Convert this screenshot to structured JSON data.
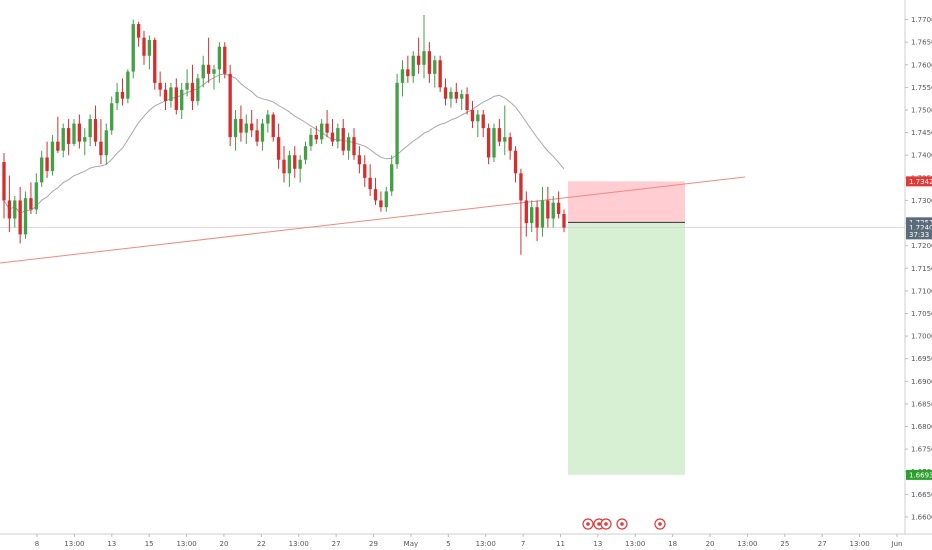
{
  "chart_data": {
    "type": "candlestick",
    "price_axis": {
      "ticks": [
        "1.77000",
        "1.76500",
        "1.76000",
        "1.75500",
        "1.75000",
        "1.74500",
        "1.74000",
        "1.73500",
        "1.73000",
        "1.72500",
        "1.72000",
        "1.71500",
        "1.71000",
        "1.70500",
        "1.70000",
        "1.69500",
        "1.69000",
        "1.68500",
        "1.68000",
        "1.67500",
        "1.67000",
        "1.66500",
        "1.66000"
      ],
      "range": [
        1.658,
        1.773
      ]
    },
    "time_axis": {
      "ticks": [
        "8",
        "13:00",
        "13",
        "15",
        "13:00",
        "20",
        "22",
        "13:00",
        "27",
        "29",
        "May",
        "5",
        "13:00",
        "7",
        "11",
        "13",
        "13:00",
        "18",
        "20",
        "13:00",
        "25",
        "27",
        "13:00",
        "Jun"
      ]
    },
    "price_badges": [
      {
        "label": "1.73422",
        "price": 1.73422,
        "color": "#e53935"
      },
      {
        "label": "1.72516",
        "price": 1.72516,
        "color": "#5b6b7b"
      },
      {
        "label": "1.72404",
        "price": 1.72404,
        "color": "#5b6b7b"
      },
      {
        "label": "37:33",
        "price": 1.7225,
        "color": "#5b6b7b"
      },
      {
        "label": "1.66930",
        "price": 1.6693,
        "color": "#2ca02c"
      }
    ],
    "position_tool": {
      "type": "short",
      "entry": 1.72516,
      "stop": 1.73422,
      "target": 1.6693,
      "stop_color": "#ffcdd2",
      "target_color": "#d7f0d4"
    },
    "trendline_color": "#ef8a80",
    "moving_average_color": "#a8a8a8",
    "up_color": "#43a047",
    "down_color": "#d32f2f",
    "event_marker_color": "#e53935",
    "series": [
      {
        "o": 1.7385,
        "h": 1.7405,
        "l": 1.726,
        "c": 1.73
      },
      {
        "o": 1.73,
        "h": 1.7355,
        "l": 1.723,
        "c": 1.726
      },
      {
        "o": 1.726,
        "h": 1.731,
        "l": 1.724,
        "c": 1.73
      },
      {
        "o": 1.73,
        "h": 1.733,
        "l": 1.7205,
        "c": 1.7225
      },
      {
        "o": 1.7225,
        "h": 1.732,
        "l": 1.7215,
        "c": 1.7305
      },
      {
        "o": 1.7305,
        "h": 1.734,
        "l": 1.727,
        "c": 1.728
      },
      {
        "o": 1.728,
        "h": 1.736,
        "l": 1.727,
        "c": 1.734
      },
      {
        "o": 1.734,
        "h": 1.741,
        "l": 1.733,
        "c": 1.7395
      },
      {
        "o": 1.7395,
        "h": 1.743,
        "l": 1.735,
        "c": 1.7365
      },
      {
        "o": 1.7365,
        "h": 1.7445,
        "l": 1.7355,
        "c": 1.743
      },
      {
        "o": 1.743,
        "h": 1.7485,
        "l": 1.7405,
        "c": 1.741
      },
      {
        "o": 1.741,
        "h": 1.747,
        "l": 1.7395,
        "c": 1.746
      },
      {
        "o": 1.746,
        "h": 1.748,
        "l": 1.74,
        "c": 1.7425
      },
      {
        "o": 1.7425,
        "h": 1.748,
        "l": 1.742,
        "c": 1.747
      },
      {
        "o": 1.747,
        "h": 1.749,
        "l": 1.7415,
        "c": 1.743
      },
      {
        "o": 1.743,
        "h": 1.746,
        "l": 1.74,
        "c": 1.744
      },
      {
        "o": 1.744,
        "h": 1.749,
        "l": 1.742,
        "c": 1.748
      },
      {
        "o": 1.748,
        "h": 1.751,
        "l": 1.742,
        "c": 1.743
      },
      {
        "o": 1.743,
        "h": 1.748,
        "l": 1.738,
        "c": 1.74
      },
      {
        "o": 1.74,
        "h": 1.747,
        "l": 1.738,
        "c": 1.7455
      },
      {
        "o": 1.7455,
        "h": 1.753,
        "l": 1.7445,
        "c": 1.7515
      },
      {
        "o": 1.7515,
        "h": 1.756,
        "l": 1.75,
        "c": 1.754
      },
      {
        "o": 1.754,
        "h": 1.757,
        "l": 1.751,
        "c": 1.7525
      },
      {
        "o": 1.7525,
        "h": 1.759,
        "l": 1.7515,
        "c": 1.7585
      },
      {
        "o": 1.7585,
        "h": 1.77,
        "l": 1.757,
        "c": 1.769
      },
      {
        "o": 1.769,
        "h": 1.7695,
        "l": 1.764,
        "c": 1.766
      },
      {
        "o": 1.766,
        "h": 1.7675,
        "l": 1.76,
        "c": 1.762
      },
      {
        "o": 1.762,
        "h": 1.7665,
        "l": 1.759,
        "c": 1.7655
      },
      {
        "o": 1.7655,
        "h": 1.766,
        "l": 1.7545,
        "c": 1.756
      },
      {
        "o": 1.756,
        "h": 1.7585,
        "l": 1.753,
        "c": 1.7545
      },
      {
        "o": 1.7545,
        "h": 1.756,
        "l": 1.75,
        "c": 1.752
      },
      {
        "o": 1.752,
        "h": 1.756,
        "l": 1.7505,
        "c": 1.755
      },
      {
        "o": 1.755,
        "h": 1.757,
        "l": 1.749,
        "c": 1.75
      },
      {
        "o": 1.75,
        "h": 1.756,
        "l": 1.748,
        "c": 1.7545
      },
      {
        "o": 1.7545,
        "h": 1.759,
        "l": 1.753,
        "c": 1.756
      },
      {
        "o": 1.756,
        "h": 1.76,
        "l": 1.75,
        "c": 1.752
      },
      {
        "o": 1.752,
        "h": 1.758,
        "l": 1.751,
        "c": 1.757
      },
      {
        "o": 1.757,
        "h": 1.762,
        "l": 1.755,
        "c": 1.76
      },
      {
        "o": 1.76,
        "h": 1.766,
        "l": 1.756,
        "c": 1.758
      },
      {
        "o": 1.758,
        "h": 1.76,
        "l": 1.7545,
        "c": 1.759
      },
      {
        "o": 1.759,
        "h": 1.765,
        "l": 1.756,
        "c": 1.764
      },
      {
        "o": 1.764,
        "h": 1.765,
        "l": 1.757,
        "c": 1.758
      },
      {
        "o": 1.758,
        "h": 1.76,
        "l": 1.742,
        "c": 1.744
      },
      {
        "o": 1.744,
        "h": 1.75,
        "l": 1.741,
        "c": 1.748
      },
      {
        "o": 1.748,
        "h": 1.751,
        "l": 1.743,
        "c": 1.745
      },
      {
        "o": 1.745,
        "h": 1.749,
        "l": 1.7425,
        "c": 1.747
      },
      {
        "o": 1.747,
        "h": 1.75,
        "l": 1.744,
        "c": 1.7455
      },
      {
        "o": 1.7455,
        "h": 1.748,
        "l": 1.742,
        "c": 1.743
      },
      {
        "o": 1.743,
        "h": 1.748,
        "l": 1.741,
        "c": 1.747
      },
      {
        "o": 1.747,
        "h": 1.75,
        "l": 1.745,
        "c": 1.749
      },
      {
        "o": 1.749,
        "h": 1.7495,
        "l": 1.743,
        "c": 1.744
      },
      {
        "o": 1.744,
        "h": 1.747,
        "l": 1.737,
        "c": 1.739
      },
      {
        "o": 1.739,
        "h": 1.742,
        "l": 1.734,
        "c": 1.736
      },
      {
        "o": 1.736,
        "h": 1.741,
        "l": 1.733,
        "c": 1.74
      },
      {
        "o": 1.74,
        "h": 1.742,
        "l": 1.735,
        "c": 1.737
      },
      {
        "o": 1.737,
        "h": 1.74,
        "l": 1.734,
        "c": 1.739
      },
      {
        "o": 1.739,
        "h": 1.743,
        "l": 1.738,
        "c": 1.742
      },
      {
        "o": 1.742,
        "h": 1.746,
        "l": 1.741,
        "c": 1.7445
      },
      {
        "o": 1.7445,
        "h": 1.7465,
        "l": 1.7425,
        "c": 1.7435
      },
      {
        "o": 1.7435,
        "h": 1.748,
        "l": 1.7425,
        "c": 1.747
      },
      {
        "o": 1.747,
        "h": 1.75,
        "l": 1.744,
        "c": 1.745
      },
      {
        "o": 1.745,
        "h": 1.748,
        "l": 1.742,
        "c": 1.743
      },
      {
        "o": 1.743,
        "h": 1.747,
        "l": 1.7415,
        "c": 1.746
      },
      {
        "o": 1.746,
        "h": 1.748,
        "l": 1.74,
        "c": 1.741
      },
      {
        "o": 1.741,
        "h": 1.745,
        "l": 1.739,
        "c": 1.744
      },
      {
        "o": 1.744,
        "h": 1.746,
        "l": 1.739,
        "c": 1.74
      },
      {
        "o": 1.74,
        "h": 1.742,
        "l": 1.736,
        "c": 1.738
      },
      {
        "o": 1.738,
        "h": 1.74,
        "l": 1.733,
        "c": 1.735
      },
      {
        "o": 1.735,
        "h": 1.738,
        "l": 1.731,
        "c": 1.7325
      },
      {
        "o": 1.7325,
        "h": 1.735,
        "l": 1.729,
        "c": 1.73
      },
      {
        "o": 1.73,
        "h": 1.732,
        "l": 1.7275,
        "c": 1.7285
      },
      {
        "o": 1.7285,
        "h": 1.733,
        "l": 1.7275,
        "c": 1.732
      },
      {
        "o": 1.732,
        "h": 1.74,
        "l": 1.731,
        "c": 1.738
      },
      {
        "o": 1.738,
        "h": 1.758,
        "l": 1.737,
        "c": 1.756
      },
      {
        "o": 1.756,
        "h": 1.761,
        "l": 1.753,
        "c": 1.759
      },
      {
        "o": 1.759,
        "h": 1.762,
        "l": 1.756,
        "c": 1.7575
      },
      {
        "o": 1.7575,
        "h": 1.763,
        "l": 1.756,
        "c": 1.762
      },
      {
        "o": 1.762,
        "h": 1.766,
        "l": 1.758,
        "c": 1.76
      },
      {
        "o": 1.76,
        "h": 1.771,
        "l": 1.757,
        "c": 1.763
      },
      {
        "o": 1.763,
        "h": 1.765,
        "l": 1.756,
        "c": 1.758
      },
      {
        "o": 1.758,
        "h": 1.762,
        "l": 1.755,
        "c": 1.761
      },
      {
        "o": 1.761,
        "h": 1.762,
        "l": 1.754,
        "c": 1.755
      },
      {
        "o": 1.755,
        "h": 1.757,
        "l": 1.751,
        "c": 1.7525
      },
      {
        "o": 1.7525,
        "h": 1.755,
        "l": 1.7505,
        "c": 1.754
      },
      {
        "o": 1.754,
        "h": 1.756,
        "l": 1.7515,
        "c": 1.7525
      },
      {
        "o": 1.7525,
        "h": 1.7545,
        "l": 1.75,
        "c": 1.7535
      },
      {
        "o": 1.7535,
        "h": 1.755,
        "l": 1.749,
        "c": 1.75
      },
      {
        "o": 1.75,
        "h": 1.752,
        "l": 1.746,
        "c": 1.7475
      },
      {
        "o": 1.7475,
        "h": 1.75,
        "l": 1.744,
        "c": 1.749
      },
      {
        "o": 1.749,
        "h": 1.75,
        "l": 1.744,
        "c": 1.746
      },
      {
        "o": 1.746,
        "h": 1.747,
        "l": 1.738,
        "c": 1.7395
      },
      {
        "o": 1.7395,
        "h": 1.747,
        "l": 1.7385,
        "c": 1.746
      },
      {
        "o": 1.746,
        "h": 1.748,
        "l": 1.742,
        "c": 1.743
      },
      {
        "o": 1.743,
        "h": 1.751,
        "l": 1.74,
        "c": 1.744
      },
      {
        "o": 1.744,
        "h": 1.745,
        "l": 1.739,
        "c": 1.741
      },
      {
        "o": 1.741,
        "h": 1.742,
        "l": 1.734,
        "c": 1.736
      },
      {
        "o": 1.736,
        "h": 1.737,
        "l": 1.718,
        "c": 1.73
      },
      {
        "o": 1.73,
        "h": 1.732,
        "l": 1.722,
        "c": 1.725
      },
      {
        "o": 1.725,
        "h": 1.73,
        "l": 1.723,
        "c": 1.7285
      },
      {
        "o": 1.7285,
        "h": 1.73,
        "l": 1.721,
        "c": 1.724
      },
      {
        "o": 1.724,
        "h": 1.733,
        "l": 1.722,
        "c": 1.73
      },
      {
        "o": 1.73,
        "h": 1.733,
        "l": 1.724,
        "c": 1.726
      },
      {
        "o": 1.726,
        "h": 1.731,
        "l": 1.724,
        "c": 1.7295
      },
      {
        "o": 1.7295,
        "h": 1.732,
        "l": 1.726,
        "c": 1.727
      },
      {
        "o": 1.727,
        "h": 1.728,
        "l": 1.723,
        "c": 1.724
      }
    ]
  }
}
